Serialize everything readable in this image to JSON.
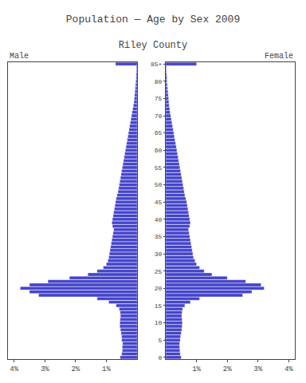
{
  "chart_data": {
    "type": "bar",
    "orientation": "horizontal",
    "title": "Population — Age by Sex 2009",
    "subtitle": "Riley County",
    "categories": [
      "0",
      null,
      null,
      null,
      null,
      "5",
      null,
      null,
      null,
      null,
      "10",
      null,
      null,
      null,
      null,
      "15",
      null,
      null,
      null,
      null,
      "20",
      null,
      null,
      null,
      null,
      "25",
      null,
      null,
      null,
      null,
      "30",
      null,
      null,
      null,
      null,
      "35",
      null,
      null,
      null,
      null,
      "40",
      null,
      null,
      null,
      null,
      "45",
      null,
      null,
      null,
      null,
      "50",
      null,
      null,
      null,
      null,
      "55",
      null,
      null,
      null,
      null,
      "60",
      null,
      null,
      null,
      null,
      "65",
      null,
      null,
      null,
      null,
      "70",
      null,
      null,
      null,
      null,
      "75",
      null,
      null,
      null,
      null,
      "80",
      null,
      null,
      null,
      null,
      "85+"
    ],
    "series": [
      {
        "name": "Male",
        "color": "#4444cc",
        "values": [
          0.55,
          0.5,
          0.48,
          0.48,
          0.47,
          0.5,
          0.5,
          0.52,
          0.54,
          0.56,
          0.56,
          0.55,
          0.54,
          0.55,
          0.58,
          0.68,
          0.92,
          1.3,
          3.2,
          3.5,
          3.8,
          3.5,
          2.9,
          2.2,
          1.6,
          1.3,
          1.1,
          1.0,
          0.95,
          0.92,
          0.9,
          0.88,
          0.86,
          0.84,
          0.82,
          0.8,
          0.78,
          0.76,
          0.8,
          0.82,
          0.8,
          0.78,
          0.76,
          0.74,
          0.72,
          0.7,
          0.68,
          0.65,
          0.62,
          0.6,
          0.58,
          0.56,
          0.54,
          0.52,
          0.5,
          0.48,
          0.46,
          0.44,
          0.42,
          0.4,
          0.38,
          0.36,
          0.34,
          0.32,
          0.3,
          0.28,
          0.26,
          0.24,
          0.22,
          0.2,
          0.18,
          0.16,
          0.14,
          0.12,
          0.1,
          0.09,
          0.08,
          0.07,
          0.06,
          0.05,
          0.04,
          0.03,
          0.03,
          0.02,
          0.02,
          0.7
        ]
      },
      {
        "name": "Female",
        "color": "#4444cc",
        "values": [
          0.5,
          0.47,
          0.46,
          0.45,
          0.45,
          0.47,
          0.48,
          0.5,
          0.52,
          0.53,
          0.54,
          0.53,
          0.52,
          0.53,
          0.55,
          0.62,
          0.8,
          1.1,
          2.5,
          2.8,
          3.2,
          3.1,
          2.6,
          2.0,
          1.5,
          1.25,
          1.1,
          1.0,
          0.95,
          0.9,
          0.88,
          0.86,
          0.84,
          0.82,
          0.8,
          0.78,
          0.76,
          0.74,
          0.78,
          0.8,
          0.78,
          0.76,
          0.74,
          0.72,
          0.7,
          0.68,
          0.65,
          0.62,
          0.6,
          0.58,
          0.56,
          0.54,
          0.52,
          0.5,
          0.48,
          0.46,
          0.44,
          0.42,
          0.4,
          0.38,
          0.36,
          0.34,
          0.32,
          0.3,
          0.28,
          0.26,
          0.24,
          0.22,
          0.2,
          0.18,
          0.16,
          0.14,
          0.13,
          0.11,
          0.1,
          0.09,
          0.08,
          0.07,
          0.06,
          0.05,
          0.04,
          0.04,
          0.03,
          0.02,
          0.02,
          1.0
        ]
      }
    ],
    "xlim": [
      0,
      4.2
    ],
    "xticks": [
      {
        "value": 1,
        "label": "1%"
      },
      {
        "value": 2,
        "label": "2%"
      },
      {
        "value": 3,
        "label": "3%"
      },
      {
        "value": 4,
        "label": "4%"
      }
    ],
    "grid": false
  }
}
